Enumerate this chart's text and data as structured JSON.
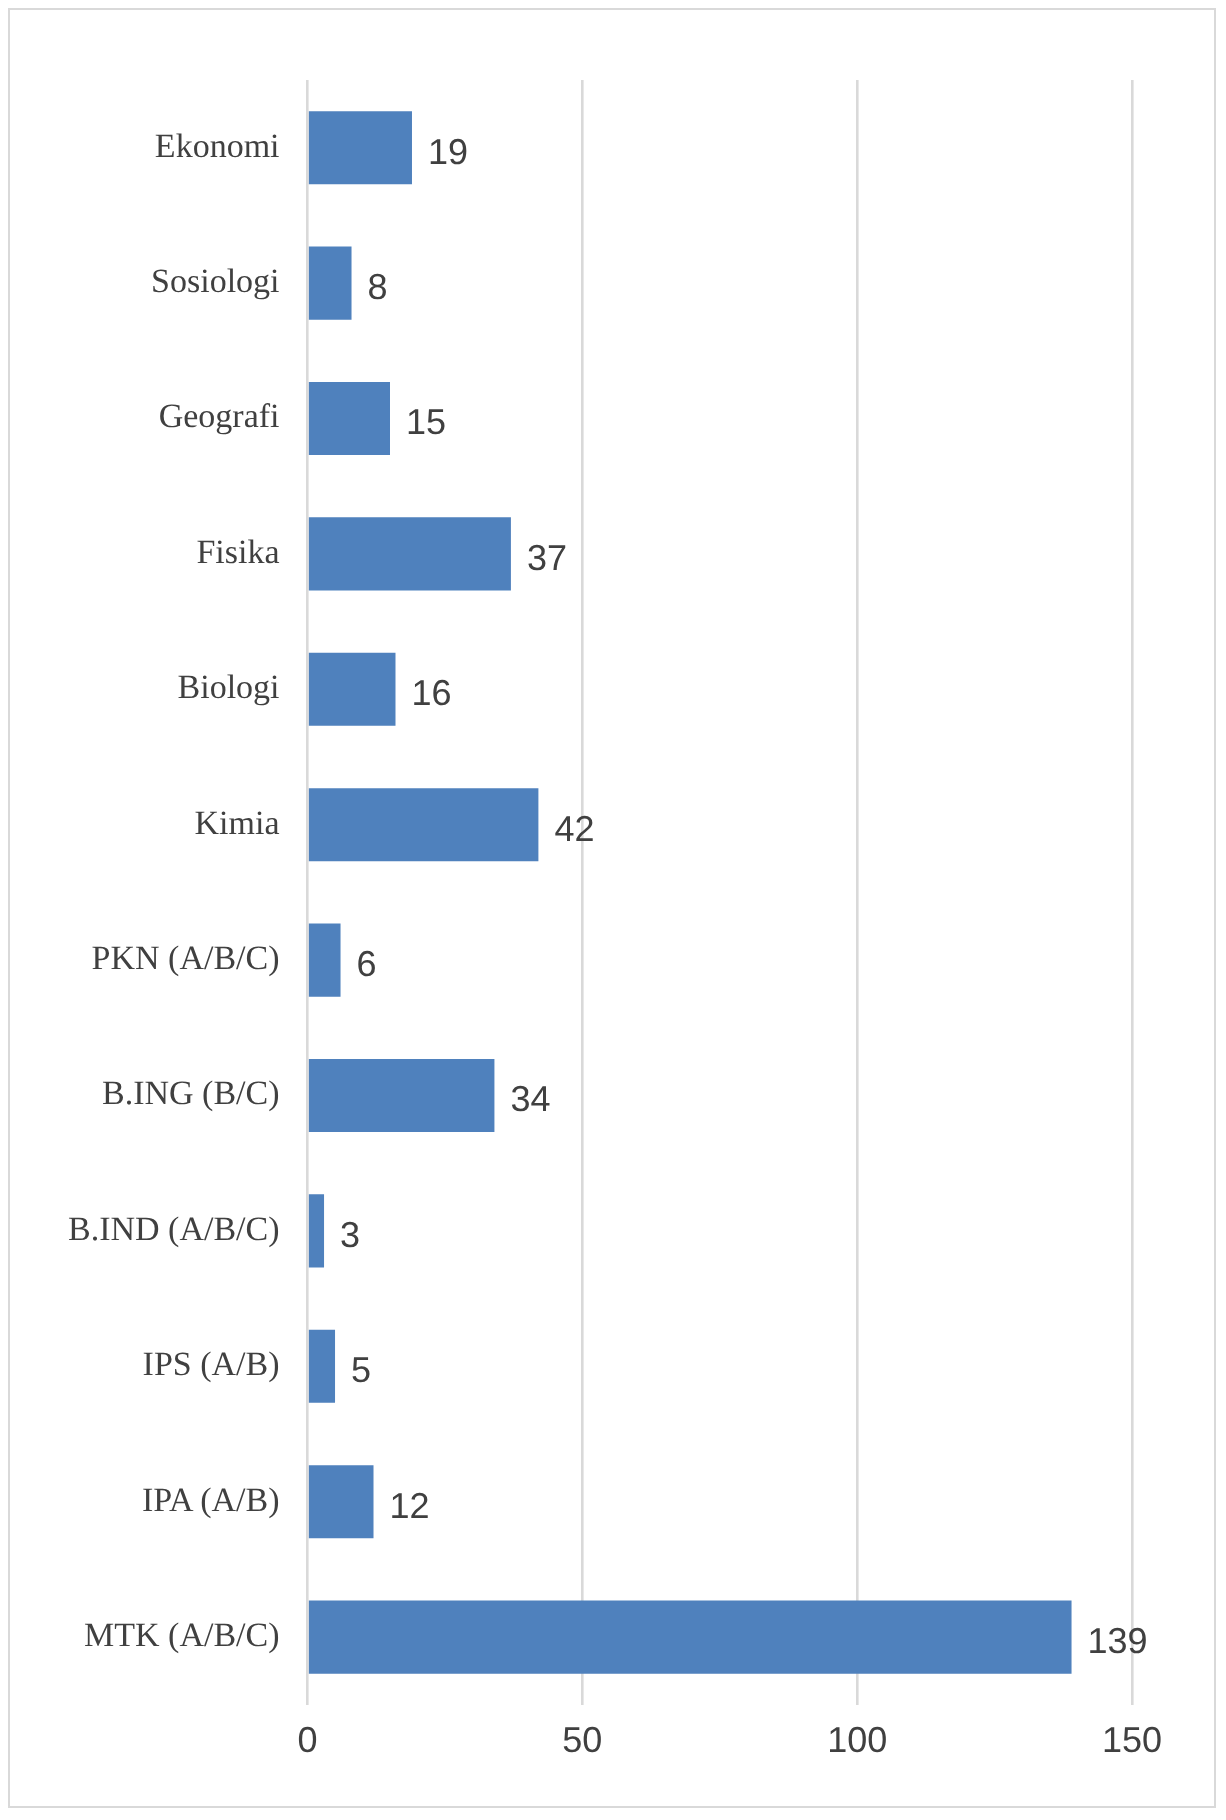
{
  "chart_data": {
    "type": "bar",
    "orientation": "horizontal",
    "categories": [
      "Ekonomi",
      "Sosiologi",
      "Geografi",
      "Fisika",
      "Biologi",
      "Kimia",
      "PKN (A/B/C)",
      "B.ING (B/C)",
      "B.IND (A/B/C)",
      "IPS (A/B)",
      "IPA (A/B)",
      "MTK (A/B/C)"
    ],
    "values": [
      19,
      8,
      15,
      37,
      16,
      42,
      6,
      34,
      3,
      5,
      12,
      139
    ],
    "color": "#4f81bd",
    "xlim": [
      0,
      150
    ],
    "xticks": [
      0,
      50,
      100,
      150
    ],
    "grid": "x",
    "data_labels": true,
    "legend": false
  }
}
